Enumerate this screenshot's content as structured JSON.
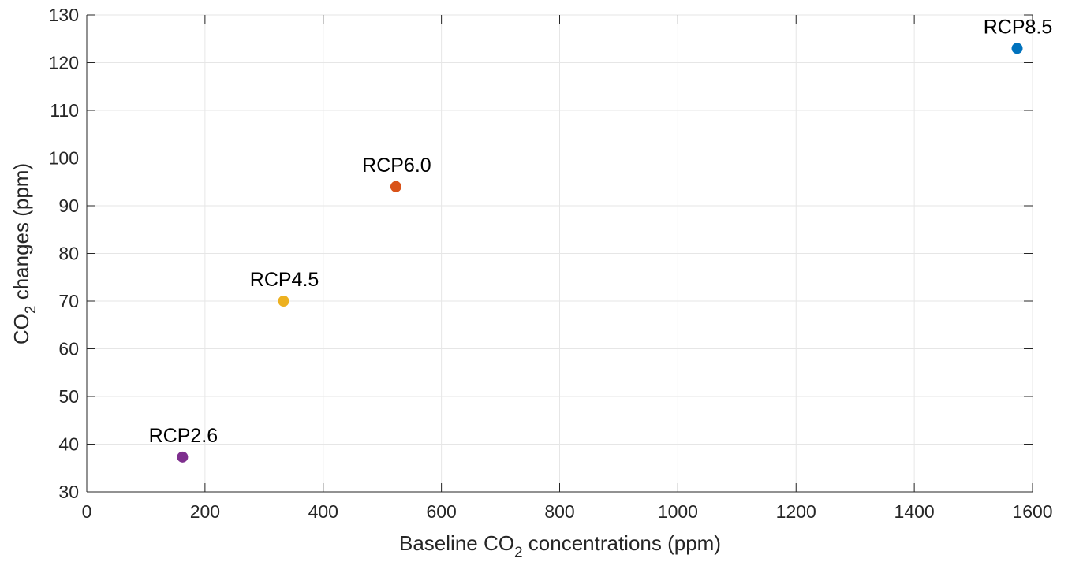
{
  "chart_data": {
    "type": "scatter",
    "title": "",
    "xlabel": {
      "pre": "Baseline CO",
      "sub": "2",
      "post": " concentrations (ppm)"
    },
    "ylabel": {
      "pre": "CO",
      "sub": "2",
      "post": " changes (ppm)"
    },
    "xlim": [
      0,
      1600
    ],
    "ylim": [
      30,
      130
    ],
    "xticks": [
      0,
      200,
      400,
      600,
      800,
      1000,
      1200,
      1400,
      1600
    ],
    "yticks": [
      30,
      40,
      50,
      60,
      70,
      80,
      90,
      100,
      110,
      120,
      130
    ],
    "grid": true,
    "points": [
      {
        "label": "RCP2.6",
        "x": 162,
        "y": 37.3,
        "color": "#7E2F8E"
      },
      {
        "label": "RCP4.5",
        "x": 333,
        "y": 70,
        "color": "#EDB120"
      },
      {
        "label": "RCP6.0",
        "x": 523,
        "y": 94,
        "color": "#D95319"
      },
      {
        "label": "RCP8.5",
        "x": 1574,
        "y": 123,
        "color": "#0072BD"
      }
    ]
  }
}
